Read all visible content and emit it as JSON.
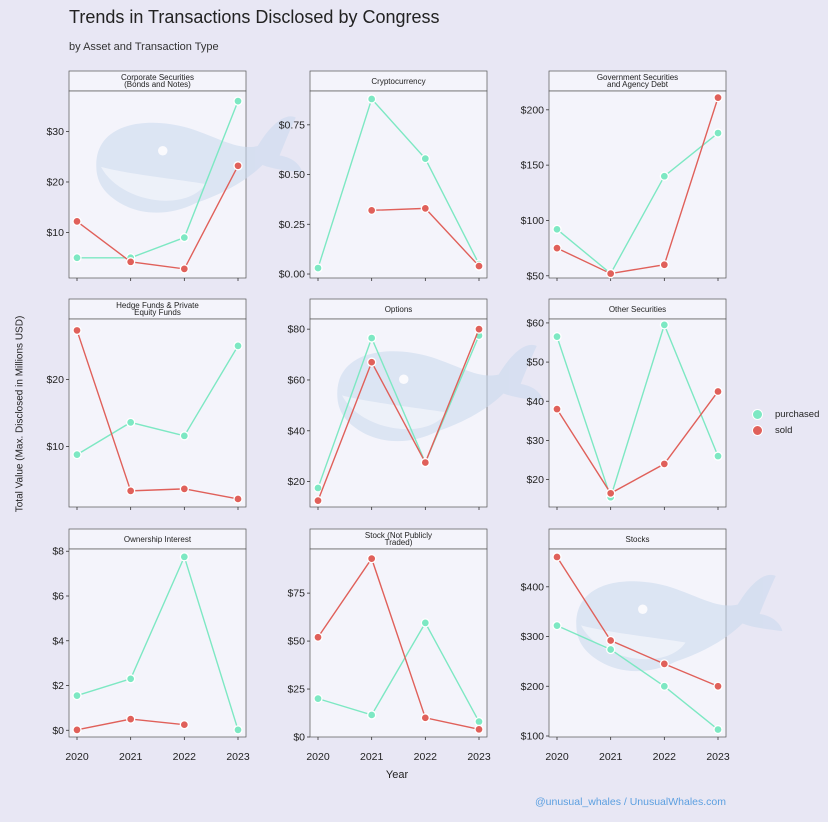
{
  "title": "Trends in Transactions Disclosed by Congress",
  "subtitle": "by Asset and Transaction Type",
  "ylabel": "Total Value (Max. Disclosed in Millions USD)",
  "xlabel": "Year",
  "credit": "@unusual_whales / UnusualWhales.com",
  "colors": {
    "purchased": "#7de8c3",
    "sold": "#e0605a",
    "panel_bg": "#f4f4fb",
    "strip_bg": "#f4f4fb",
    "whale": "#c9d9ee"
  },
  "legend": [
    {
      "name": "purchased",
      "color": "#7de8c3"
    },
    {
      "name": "sold",
      "color": "#e0605a"
    }
  ],
  "chart_data": [
    {
      "type": "line",
      "facet": [
        "Corporate Securities",
        "(Bonds and Notes)"
      ],
      "x": [
        2020,
        2021,
        2022,
        2023
      ],
      "ylim": [
        1,
        38
      ],
      "yticks": [
        10,
        20,
        30
      ],
      "ytick_labels": [
        "$10",
        "$20",
        "$30"
      ],
      "series": [
        {
          "name": "purchased",
          "values": [
            5.0,
            5.0,
            9.0,
            36.0
          ]
        },
        {
          "name": "sold",
          "values": [
            12.2,
            4.2,
            2.8,
            23.2
          ]
        }
      ]
    },
    {
      "type": "line",
      "facet": [
        "Cryptocurrency"
      ],
      "x": [
        2020,
        2021,
        2022,
        2023
      ],
      "ylim": [
        -0.02,
        0.92
      ],
      "yticks": [
        0.0,
        0.25,
        0.5,
        0.75
      ],
      "ytick_labels": [
        "$0.00",
        "$0.25",
        "$0.50",
        "$0.75"
      ],
      "series": [
        {
          "name": "purchased",
          "values": [
            0.03,
            0.88,
            0.58,
            0.05
          ]
        },
        {
          "name": "sold",
          "values": [
            null,
            0.32,
            0.33,
            0.04
          ]
        }
      ]
    },
    {
      "type": "line",
      "facet": [
        "Government Securities",
        "and Agency Debt"
      ],
      "x": [
        2020,
        2021,
        2022,
        2023
      ],
      "ylim": [
        48,
        217
      ],
      "yticks": [
        50,
        100,
        150,
        200
      ],
      "ytick_labels": [
        "$50",
        "$100",
        "$150",
        "$200"
      ],
      "series": [
        {
          "name": "purchased",
          "values": [
            92,
            52,
            140,
            179
          ]
        },
        {
          "name": "sold",
          "values": [
            75,
            52,
            60,
            211
          ]
        }
      ]
    },
    {
      "type": "line",
      "facet": [
        "Hedge Funds & Private",
        "Equity Funds"
      ],
      "x": [
        2020,
        2021,
        2022,
        2023
      ],
      "ylim": [
        1,
        29
      ],
      "yticks": [
        10,
        20
      ],
      "ytick_labels": [
        "$10",
        "$20"
      ],
      "series": [
        {
          "name": "purchased",
          "values": [
            8.8,
            13.6,
            11.6,
            25.0
          ]
        },
        {
          "name": "sold",
          "values": [
            27.3,
            3.4,
            3.7,
            2.2
          ]
        }
      ]
    },
    {
      "type": "line",
      "facet": [
        "Options"
      ],
      "x": [
        2020,
        2021,
        2022,
        2023
      ],
      "ylim": [
        10,
        84
      ],
      "yticks": [
        20,
        40,
        60,
        80
      ],
      "ytick_labels": [
        "$20",
        "$40",
        "$60",
        "$80"
      ],
      "series": [
        {
          "name": "purchased",
          "values": [
            17.5,
            76.5,
            27.5,
            77.5
          ]
        },
        {
          "name": "sold",
          "values": [
            12.5,
            67.0,
            27.5,
            80.0
          ]
        }
      ]
    },
    {
      "type": "line",
      "facet": [
        "Other Securities"
      ],
      "x": [
        2020,
        2021,
        2022,
        2023
      ],
      "ylim": [
        13,
        61
      ],
      "yticks": [
        20,
        30,
        40,
        50,
        60
      ],
      "ytick_labels": [
        "$20",
        "$30",
        "$40",
        "$50",
        "$60"
      ],
      "series": [
        {
          "name": "purchased",
          "values": [
            56.5,
            15.5,
            59.5,
            26.0
          ]
        },
        {
          "name": "sold",
          "values": [
            38.0,
            16.5,
            24.0,
            42.5
          ]
        }
      ]
    },
    {
      "type": "line",
      "facet": [
        "Ownership Interest"
      ],
      "x": [
        2020,
        2021,
        2022,
        2023
      ],
      "ylim": [
        -0.3,
        8.1
      ],
      "yticks": [
        0,
        2,
        4,
        6,
        8
      ],
      "ytick_labels": [
        "$0",
        "$2",
        "$4",
        "$6",
        "$8"
      ],
      "series": [
        {
          "name": "purchased",
          "values": [
            1.55,
            2.3,
            7.75,
            0.02
          ]
        },
        {
          "name": "sold",
          "values": [
            0.02,
            0.5,
            0.25,
            null
          ]
        }
      ]
    },
    {
      "type": "line",
      "facet": [
        "Stock (Not Publicly",
        "Traded)"
      ],
      "x": [
        2020,
        2021,
        2022,
        2023
      ],
      "ylim": [
        0,
        98
      ],
      "yticks": [
        0,
        25,
        50,
        75
      ],
      "ytick_labels": [
        "$0",
        "$25",
        "$50",
        "$75"
      ],
      "series": [
        {
          "name": "purchased",
          "values": [
            20,
            11.5,
            59.5,
            8
          ]
        },
        {
          "name": "sold",
          "values": [
            52,
            93,
            10,
            4
          ]
        }
      ]
    },
    {
      "type": "line",
      "facet": [
        "Stocks"
      ],
      "x": [
        2020,
        2021,
        2022,
        2023
      ],
      "ylim": [
        98,
        476
      ],
      "yticks": [
        100,
        200,
        300,
        400
      ],
      "ytick_labels": [
        "$100",
        "$200",
        "$300",
        "$400"
      ],
      "series": [
        {
          "name": "purchased",
          "values": [
            322,
            274,
            200,
            113
          ]
        },
        {
          "name": "sold",
          "values": [
            460,
            292,
            245,
            200
          ]
        }
      ]
    }
  ]
}
